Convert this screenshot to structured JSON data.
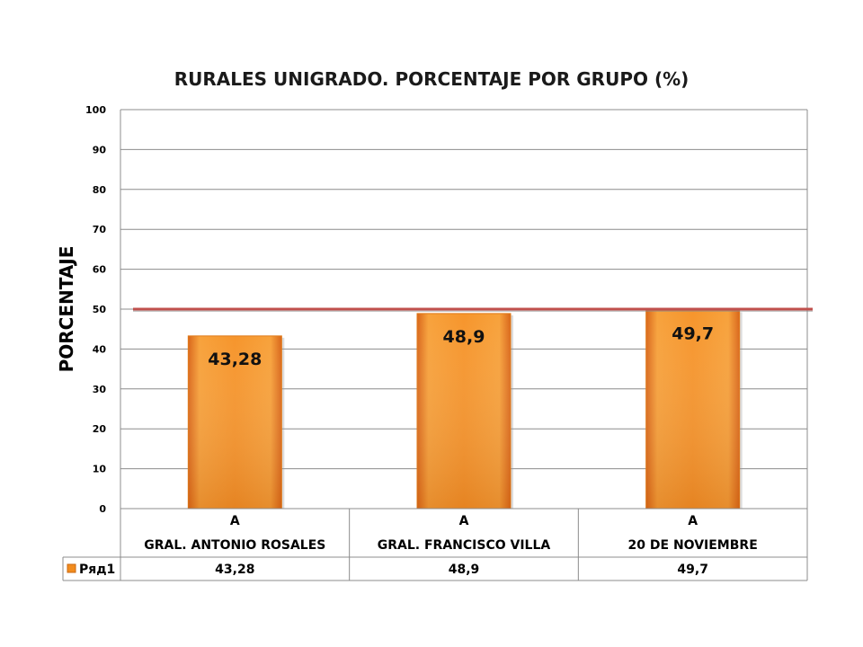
{
  "chart_data": {
    "type": "bar",
    "title": "RURALES UNIGRADO. PORCENTAJE POR GRUPO (%)",
    "ylabel": "PORCENTAJE",
    "xlabel": "",
    "ylim": [
      0,
      100
    ],
    "yticks": [
      "0",
      "10",
      "20",
      "30",
      "40",
      "50",
      "60",
      "70",
      "80",
      "90",
      "100"
    ],
    "categories": [
      {
        "group": "A",
        "name": "GRAL. ANTONIO ROSALES"
      },
      {
        "group": "A",
        "name": "GRAL. FRANCISCO VILLA"
      },
      {
        "group": "A",
        "name": "20 DE NOVIEMBRE"
      }
    ],
    "series": [
      {
        "name": "Ряд1",
        "values": [
          43.28,
          48.9,
          49.7
        ],
        "labels": [
          "43,28",
          "48,9",
          "49,7"
        ],
        "color": "#f28c1e"
      }
    ],
    "reference_line": {
      "value": 50,
      "color": "#c0504d"
    },
    "grid": true,
    "legend": "data-table"
  }
}
